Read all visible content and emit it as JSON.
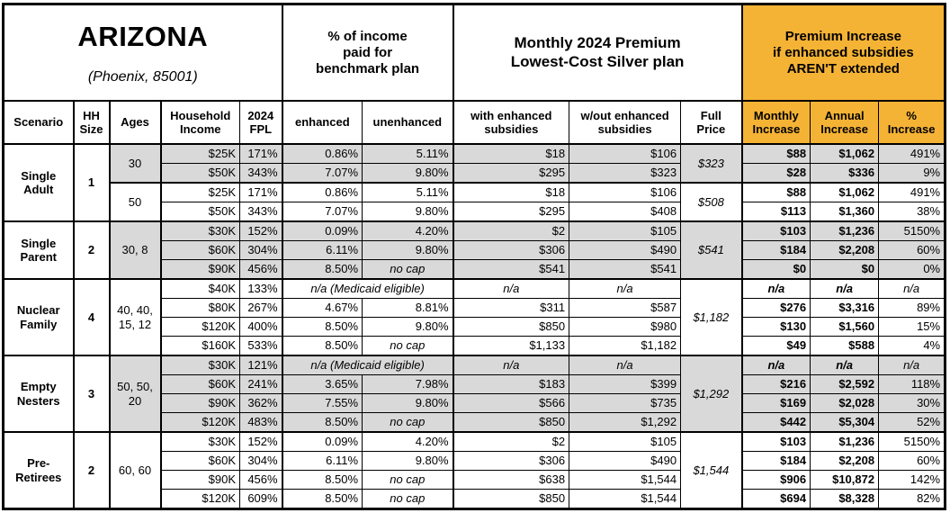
{
  "title": {
    "state": "ARIZONA",
    "location": "(Phoenix, 85001)"
  },
  "headers": {
    "group_income_pct": "% of income\npaid for\nbenchmark plan",
    "group_premium": "Monthly 2024 Premium\nLowest-Cost Silver plan",
    "group_increase": "Premium Increase\nif enhanced subsidies\nAREN'T extended",
    "cols": {
      "scenario": "Scenario",
      "hh_size": "HH\nSize",
      "ages": "Ages",
      "income": "Household\nIncome",
      "fpl": "2024\nFPL",
      "enhanced": "enhanced",
      "unenhanced": "unenhanced",
      "with_sub": "with enhanced\nsubsidies",
      "wout_sub": "w/out enhanced\nsubsidies",
      "full_price": "Full\nPrice",
      "monthly": "Monthly\nIncrease",
      "annual": "Annual\nIncrease",
      "pct": "%\nIncrease"
    }
  },
  "colors": {
    "accent_orange": "#F5B335",
    "row_shade": "#D9D9D9"
  },
  "scenarios": [
    {
      "name": "Single Adult",
      "hh_size": "1",
      "groups": [
        {
          "ages": "30",
          "shaded": true,
          "full_price": "$323",
          "rows": [
            {
              "income": "$25K",
              "fpl": "171%",
              "enhanced": "0.86%",
              "unenhanced": "5.11%",
              "with_sub": "$18",
              "wout_sub": "$106",
              "monthly": "$88",
              "annual": "$1,062",
              "pct": "491%"
            },
            {
              "income": "$50K",
              "fpl": "343%",
              "enhanced": "7.07%",
              "unenhanced": "9.80%",
              "with_sub": "$295",
              "wout_sub": "$323",
              "monthly": "$28",
              "annual": "$336",
              "pct": "9%"
            }
          ]
        },
        {
          "ages": "50",
          "shaded": false,
          "full_price": "$508",
          "rows": [
            {
              "income": "$25K",
              "fpl": "171%",
              "enhanced": "0.86%",
              "unenhanced": "5.11%",
              "with_sub": "$18",
              "wout_sub": "$106",
              "monthly": "$88",
              "annual": "$1,062",
              "pct": "491%"
            },
            {
              "income": "$50K",
              "fpl": "343%",
              "enhanced": "7.07%",
              "unenhanced": "9.80%",
              "with_sub": "$295",
              "wout_sub": "$408",
              "monthly": "$113",
              "annual": "$1,360",
              "pct": "38%"
            }
          ]
        }
      ]
    },
    {
      "name": "Single Parent",
      "hh_size": "2",
      "groups": [
        {
          "ages": "30, 8",
          "shaded": true,
          "full_price": "$541",
          "rows": [
            {
              "income": "$30K",
              "fpl": "152%",
              "enhanced": "0.09%",
              "unenhanced": "4.20%",
              "with_sub": "$2",
              "wout_sub": "$105",
              "monthly": "$103",
              "annual": "$1,236",
              "pct": "5150%"
            },
            {
              "income": "$60K",
              "fpl": "304%",
              "enhanced": "6.11%",
              "unenhanced": "9.80%",
              "with_sub": "$306",
              "wout_sub": "$490",
              "monthly": "$184",
              "annual": "$2,208",
              "pct": "60%"
            },
            {
              "income": "$90K",
              "fpl": "456%",
              "enhanced": "8.50%",
              "unenhanced": "no cap",
              "with_sub": "$541",
              "wout_sub": "$541",
              "monthly": "$0",
              "annual": "$0",
              "pct": "0%"
            }
          ]
        }
      ]
    },
    {
      "name": "Nuclear Family",
      "hh_size": "4",
      "groups": [
        {
          "ages": "40, 40, 15, 12",
          "shaded": false,
          "full_price": "$1,182",
          "rows": [
            {
              "income": "$40K",
              "fpl": "133%",
              "medicaid": true,
              "note": "n/a (Medicaid eligible)",
              "with_sub": "n/a",
              "wout_sub": "n/a",
              "monthly": "n/a",
              "annual": "n/a",
              "pct": "n/a"
            },
            {
              "income": "$80K",
              "fpl": "267%",
              "enhanced": "4.67%",
              "unenhanced": "8.81%",
              "with_sub": "$311",
              "wout_sub": "$587",
              "monthly": "$276",
              "annual": "$3,316",
              "pct": "89%"
            },
            {
              "income": "$120K",
              "fpl": "400%",
              "enhanced": "8.50%",
              "unenhanced": "9.80%",
              "with_sub": "$850",
              "wout_sub": "$980",
              "monthly": "$130",
              "annual": "$1,560",
              "pct": "15%"
            },
            {
              "income": "$160K",
              "fpl": "533%",
              "enhanced": "8.50%",
              "unenhanced": "no cap",
              "with_sub": "$1,133",
              "wout_sub": "$1,182",
              "monthly": "$49",
              "annual": "$588",
              "pct": "4%"
            }
          ]
        }
      ]
    },
    {
      "name": "Empty Nesters",
      "hh_size": "3",
      "groups": [
        {
          "ages": "50, 50, 20",
          "shaded": true,
          "full_price": "$1,292",
          "rows": [
            {
              "income": "$30K",
              "fpl": "121%",
              "medicaid": true,
              "note": "n/a (Medicaid eligible)",
              "with_sub": "n/a",
              "wout_sub": "n/a",
              "monthly": "n/a",
              "annual": "n/a",
              "pct": "n/a"
            },
            {
              "income": "$60K",
              "fpl": "241%",
              "enhanced": "3.65%",
              "unenhanced": "7.98%",
              "with_sub": "$183",
              "wout_sub": "$399",
              "monthly": "$216",
              "annual": "$2,592",
              "pct": "118%"
            },
            {
              "income": "$90K",
              "fpl": "362%",
              "enhanced": "7.55%",
              "unenhanced": "9.80%",
              "with_sub": "$566",
              "wout_sub": "$735",
              "monthly": "$169",
              "annual": "$2,028",
              "pct": "30%"
            },
            {
              "income": "$120K",
              "fpl": "483%",
              "enhanced": "8.50%",
              "unenhanced": "no cap",
              "with_sub": "$850",
              "wout_sub": "$1,292",
              "monthly": "$442",
              "annual": "$5,304",
              "pct": "52%"
            }
          ]
        }
      ]
    },
    {
      "name": "Pre-Retirees",
      "hh_size": "2",
      "groups": [
        {
          "ages": "60, 60",
          "shaded": false,
          "full_price": "$1,544",
          "rows": [
            {
              "income": "$30K",
              "fpl": "152%",
              "enhanced": "0.09%",
              "unenhanced": "4.20%",
              "with_sub": "$2",
              "wout_sub": "$105",
              "monthly": "$103",
              "annual": "$1,236",
              "pct": "5150%"
            },
            {
              "income": "$60K",
              "fpl": "304%",
              "enhanced": "6.11%",
              "unenhanced": "9.80%",
              "with_sub": "$306",
              "wout_sub": "$490",
              "monthly": "$184",
              "annual": "$2,208",
              "pct": "60%"
            },
            {
              "income": "$90K",
              "fpl": "456%",
              "enhanced": "8.50%",
              "unenhanced": "no cap",
              "with_sub": "$638",
              "wout_sub": "$1,544",
              "monthly": "$906",
              "annual": "$10,872",
              "pct": "142%"
            },
            {
              "income": "$120K",
              "fpl": "609%",
              "enhanced": "8.50%",
              "unenhanced": "no cap",
              "with_sub": "$850",
              "wout_sub": "$1,544",
              "monthly": "$694",
              "annual": "$8,328",
              "pct": "82%"
            }
          ]
        }
      ]
    }
  ]
}
